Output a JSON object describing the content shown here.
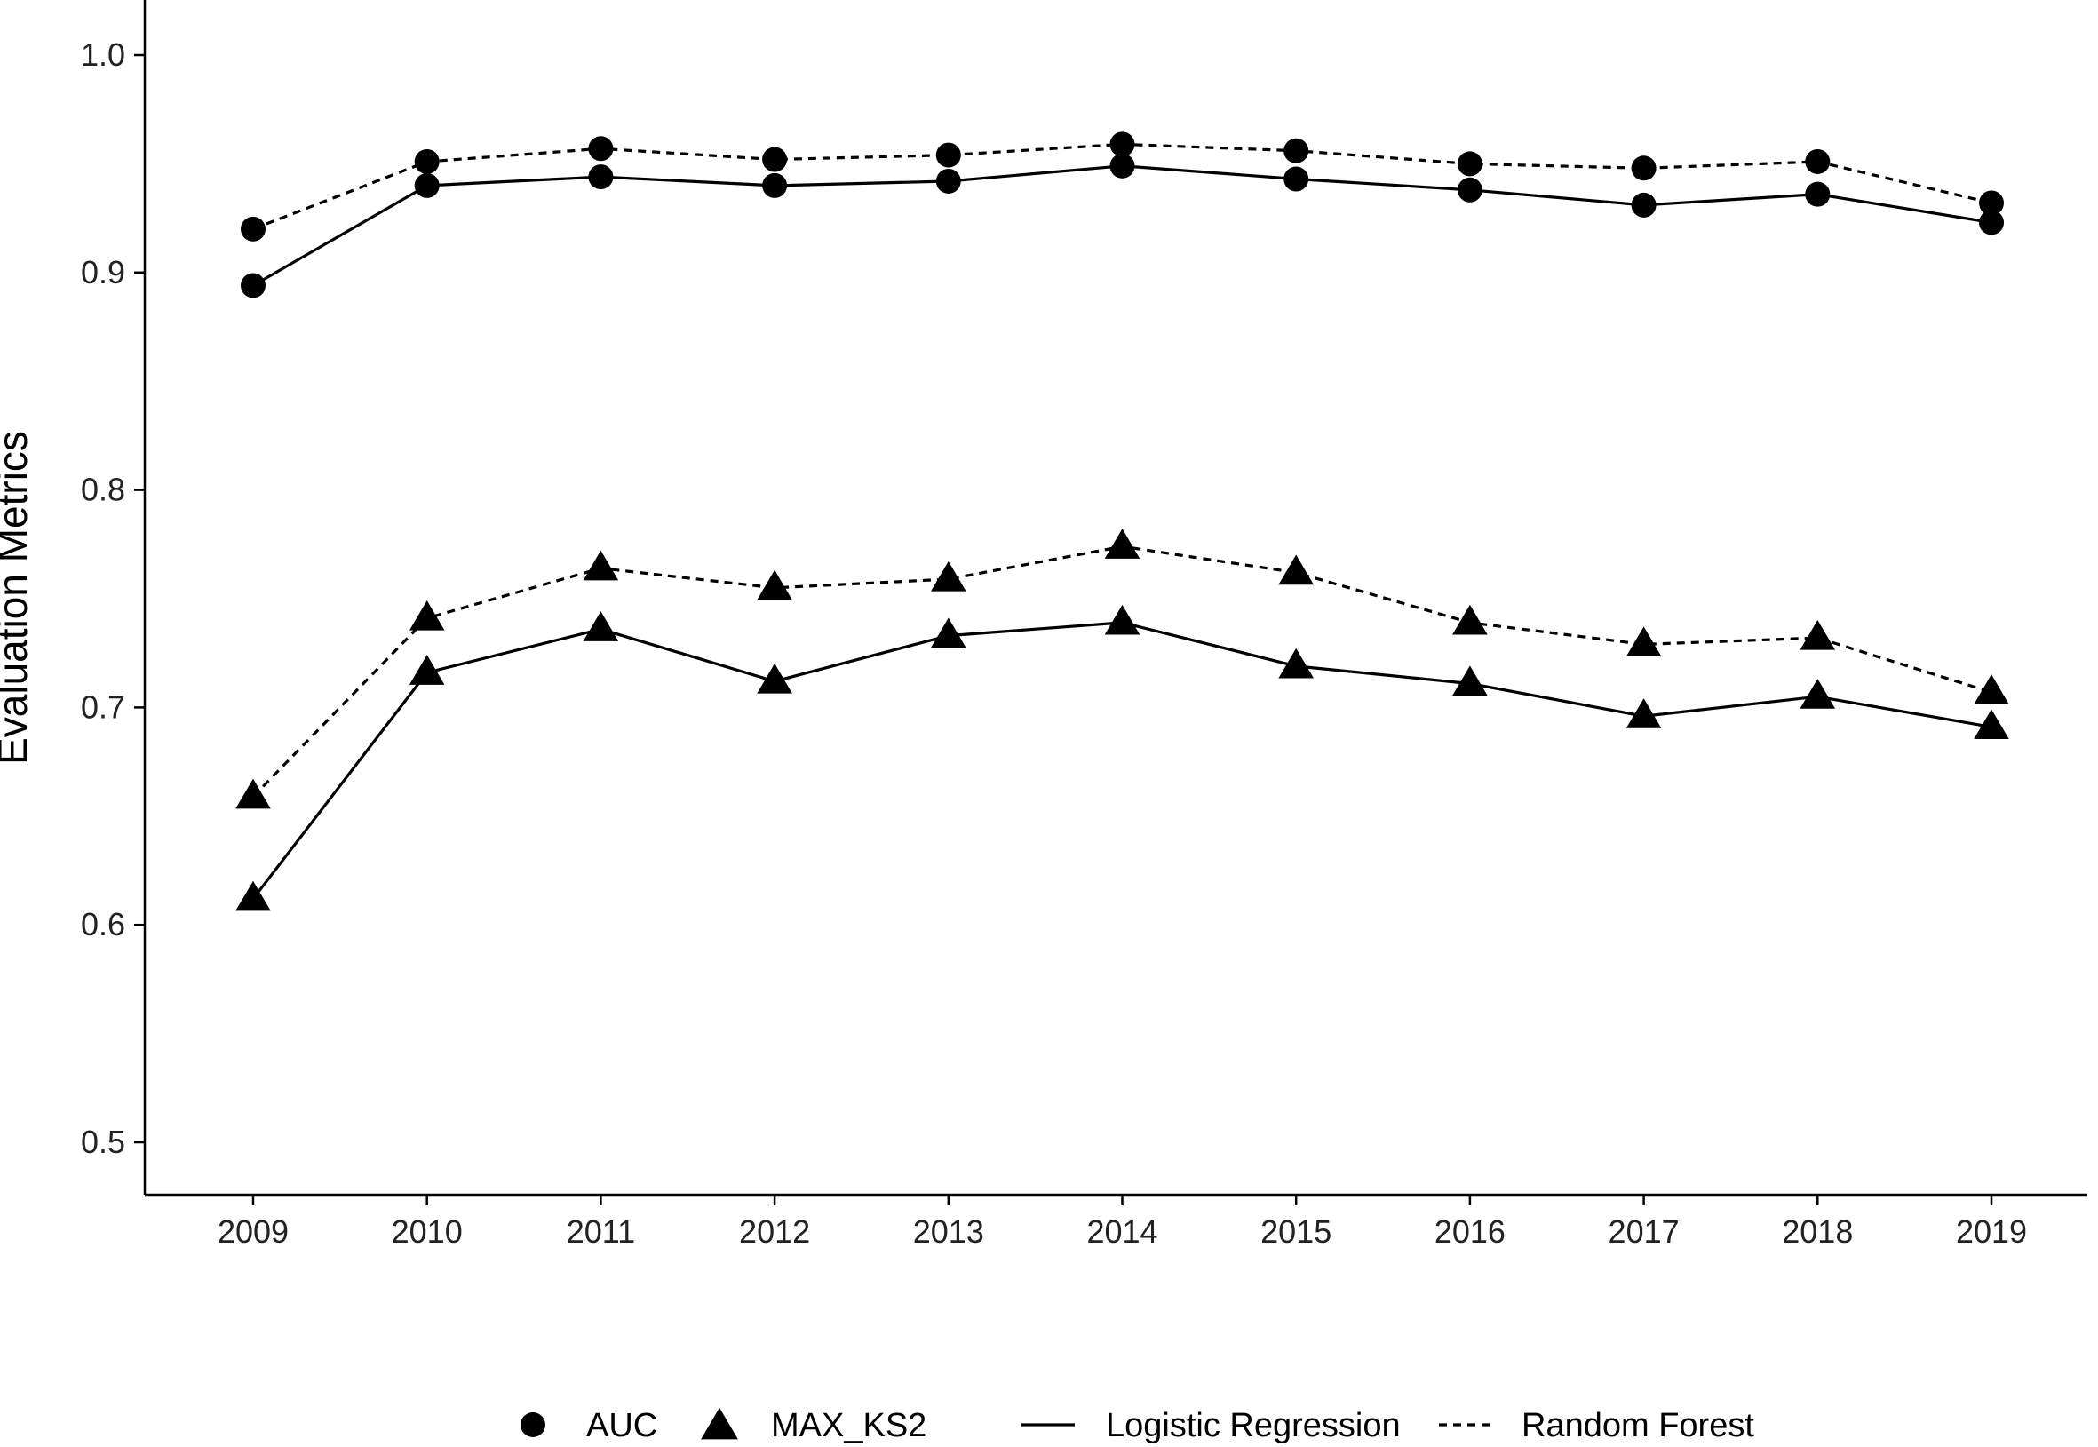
{
  "chart_data": {
    "type": "line",
    "title": "",
    "xlabel": "",
    "ylabel": "Evaluation Metrics",
    "x": [
      "2009",
      "2010",
      "2011",
      "2012",
      "2013",
      "2014",
      "2015",
      "2016",
      "2017",
      "2018",
      "2019"
    ],
    "ylim": [
      0.5,
      1.0
    ],
    "yticks": [
      "0.5",
      "0.6",
      "0.7",
      "0.8",
      "0.9",
      "1.0"
    ],
    "grid": false,
    "legend_position": "bottom",
    "series": [
      {
        "metric": "AUC",
        "model": "Logistic Regression",
        "marker": "circle",
        "linestyle": "solid",
        "values": [
          0.894,
          0.94,
          0.944,
          0.94,
          0.942,
          0.949,
          0.943,
          0.938,
          0.931,
          0.936,
          0.923
        ]
      },
      {
        "metric": "AUC",
        "model": "Random Forest",
        "marker": "circle",
        "linestyle": "dashed",
        "values": [
          0.92,
          0.951,
          0.957,
          0.952,
          0.954,
          0.959,
          0.956,
          0.95,
          0.948,
          0.951,
          0.932
        ]
      },
      {
        "metric": "MAX_KS2",
        "model": "Logistic Regression",
        "marker": "triangle",
        "linestyle": "solid",
        "values": [
          0.612,
          0.716,
          0.736,
          0.712,
          0.733,
          0.739,
          0.719,
          0.711,
          0.696,
          0.705,
          0.691
        ]
      },
      {
        "metric": "MAX_KS2",
        "model": "Random Forest",
        "marker": "triangle",
        "linestyle": "dashed",
        "values": [
          0.659,
          0.741,
          0.764,
          0.755,
          0.759,
          0.774,
          0.762,
          0.739,
          0.729,
          0.732,
          0.707
        ]
      }
    ],
    "legend": {
      "shape_items": [
        {
          "label": "AUC",
          "marker": "circle"
        },
        {
          "label": "MAX_KS2",
          "marker": "triangle"
        }
      ],
      "linetype_items": [
        {
          "label": "Logistic Regression",
          "linestyle": "solid"
        },
        {
          "label": "Random Forest",
          "linestyle": "dashed"
        }
      ]
    }
  },
  "colors": {
    "ink": "#000000",
    "tick_text": "#222222",
    "background": "#ffffff"
  }
}
